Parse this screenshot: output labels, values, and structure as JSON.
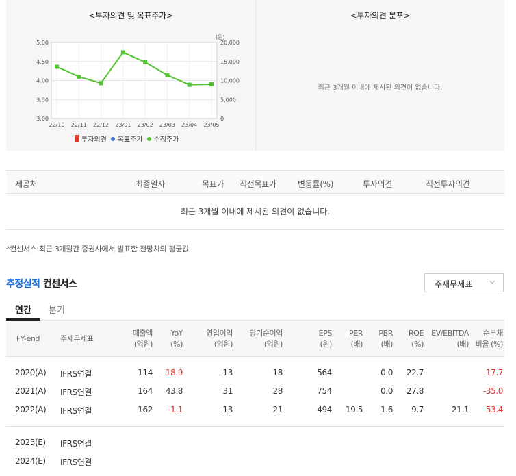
{
  "opinion_panel": {
    "title": "<투자의견 및 목표주가>",
    "chart_data": {
      "type": "line",
      "x": [
        "22/10",
        "22/11",
        "22/12",
        "23/01",
        "23/02",
        "23/03",
        "23/04",
        "23/05"
      ],
      "y_left_ticks": [
        "5.00",
        "4.50",
        "4.00",
        "3.50",
        "3.00"
      ],
      "y_left_range": [
        3.0,
        5.0
      ],
      "y_right_unit": "(원)",
      "y_right_ticks": [
        "20,000",
        "15,000",
        "10,000",
        "5,000",
        "0"
      ],
      "y_right_range": [
        0,
        20000
      ],
      "series": [
        {
          "name": "수정주가",
          "axis": "right",
          "color": "#53c232",
          "values": [
            13600,
            11000,
            9300,
            17400,
            14800,
            11400,
            8900,
            9000
          ]
        }
      ],
      "legend": [
        "투자의견",
        "목표주가",
        "수정주가"
      ],
      "legend_colors": [
        "#e03a2f",
        "#3d6fce",
        "#53c232"
      ],
      "grid": true
    }
  },
  "distribution_panel": {
    "title": "<투자의견 분포>",
    "empty_message": "최근 3개월 이내에 제시된 의견이 없습니다."
  },
  "opinion_table": {
    "columns": [
      "제공처",
      "최종일자",
      "목표가",
      "직전목표가",
      "변동률(%)",
      "투자의견",
      "직전투자의견"
    ],
    "empty_message": "최근 3개월 이내에 제시된 의견이 없습니다."
  },
  "consensus_note": "*컨센서스:최근 3개월간 증권사에서 발표한 전망치의 평균값",
  "section": {
    "title_accent": "추정실적",
    "title_rest": "컨센서스",
    "select_value": "주재무제표",
    "tabs": [
      "연간",
      "분기"
    ]
  },
  "financials": {
    "headers": {
      "fy": "FY-end",
      "basis": "주재무제표",
      "revenue": [
        "매출액",
        "(억원)"
      ],
      "yoy": [
        "YoY",
        "(%)"
      ],
      "op": [
        "영업이익",
        "(억원)"
      ],
      "net": [
        "당기순이익",
        "(억원)"
      ],
      "eps": [
        "EPS",
        "(원)"
      ],
      "per": [
        "PER",
        "(배)"
      ],
      "pbr": [
        "PBR",
        "(배)"
      ],
      "roe": [
        "ROE",
        "(%)"
      ],
      "ev": [
        "EV/EBITDA",
        "(배)"
      ],
      "debt": [
        "순부채",
        "비율 (%)"
      ]
    },
    "rows": [
      {
        "fy": "2020(A)",
        "basis": "IFRS연결",
        "revenue": "114",
        "yoy": "-18.9",
        "op": "13",
        "net": "18",
        "eps": "564",
        "per": "",
        "pbr": "0.0",
        "roe": "22.7",
        "ev": "",
        "debt": "-17.7"
      },
      {
        "fy": "2021(A)",
        "basis": "IFRS연결",
        "revenue": "164",
        "yoy": "43.8",
        "op": "31",
        "net": "28",
        "eps": "754",
        "per": "",
        "pbr": "0.0",
        "roe": "27.8",
        "ev": "",
        "debt": "-35.0"
      },
      {
        "fy": "2022(A)",
        "basis": "IFRS연결",
        "revenue": "162",
        "yoy": "-1.1",
        "op": "13",
        "net": "21",
        "eps": "494",
        "per": "19.5",
        "pbr": "1.6",
        "roe": "9.7",
        "ev": "21.1",
        "debt": "-53.4"
      },
      {
        "fy": "2023(E)",
        "basis": "IFRS연결",
        "revenue": "",
        "yoy": "",
        "op": "",
        "net": "",
        "eps": "",
        "per": "",
        "pbr": "",
        "roe": "",
        "ev": "",
        "debt": ""
      },
      {
        "fy": "2024(E)",
        "basis": "IFRS연결",
        "revenue": "",
        "yoy": "",
        "op": "",
        "net": "",
        "eps": "",
        "per": "",
        "pbr": "",
        "roe": "",
        "ev": "",
        "debt": ""
      }
    ]
  }
}
